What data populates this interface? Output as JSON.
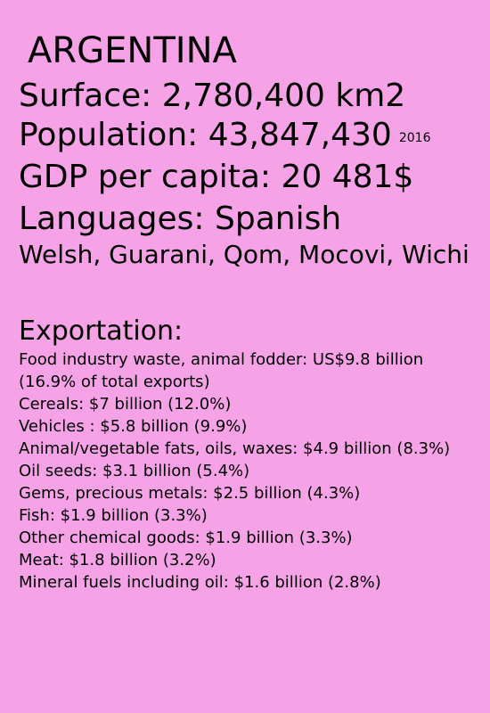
{
  "country": "ARGENTINA",
  "surface": "Surface:  2,780,400 km2",
  "population": "Population:   43,847,430",
  "population_year": "2016",
  "gdp": "GDP per capita: 20 481$",
  "languages_main": "Languages: Spanish",
  "languages_other": "Welsh, Guarani, Qom, Mocovi, Wichi",
  "exportation_heading": "Exportation:",
  "exports": [
    "Food industry waste, animal fodder: US$9.8 billion (16.9% of total exports)",
    "Cereals: $7 billion (12.0%)",
    "Vehicles : $5.8 billion (9.9%)",
    "Animal/vegetable fats, oils, waxes: $4.9 billion (8.3%)",
    "Oil seeds: $3.1 billion (5.4%)",
    "Gems, precious metals: $2.5 billion (4.3%)",
    "Fish: $1.9 billion (3.3%)",
    "Other chemical goods: $1.9 billion (3.3%)",
    "Meat: $1.8 billion (3.2%)",
    "Mineral fuels including oil: $1.6 billion (2.8%)"
  ],
  "colors": {
    "background": "#f5a3e6",
    "text": "#000000"
  }
}
